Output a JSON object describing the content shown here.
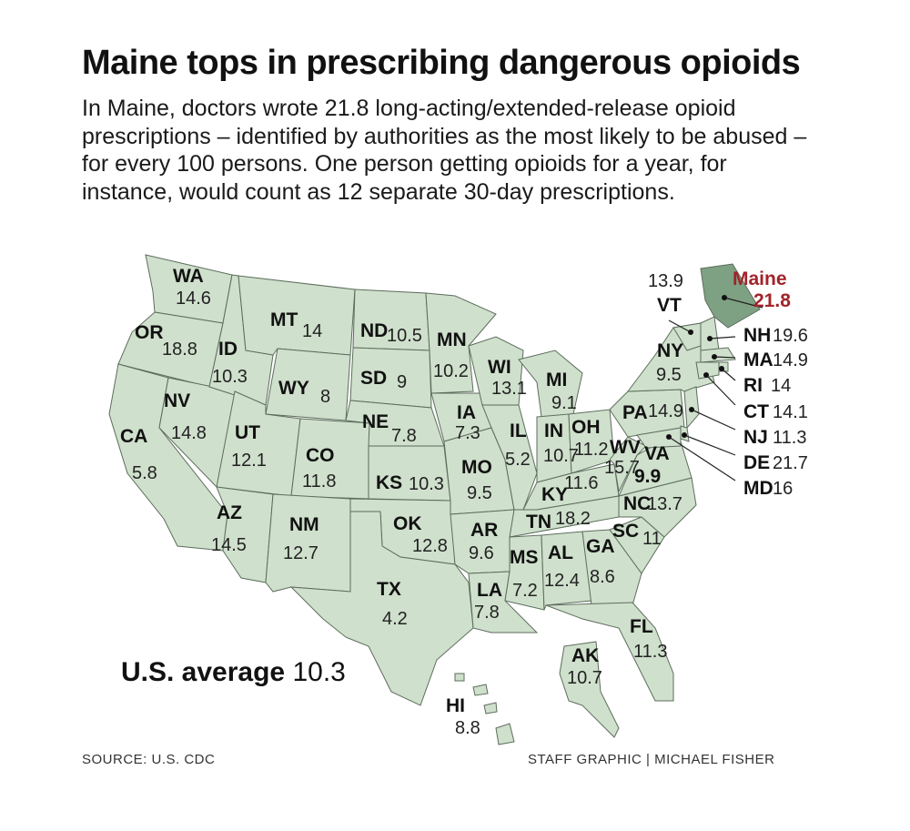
{
  "title": "Maine tops in prescribing dangerous opioids",
  "subtitle": "In Maine, doctors wrote 21.8 long-acting/extended-release opioid prescriptions – identified by authorities as the most likely to be abused – for every 100 persons. One person getting opioids for a year, for instance, would count as 12 separate 30-day prescriptions.",
  "us_average": {
    "label": "U.S. average",
    "value": "10.3"
  },
  "source": "SOURCE: U.S. CDC",
  "credit": "STAFF GRAPHIC | MICHAEL FISHER",
  "colors": {
    "state_fill": "#cfe0cc",
    "highlight_fill": "#7ea183",
    "highlight_text": "#a2232a",
    "border": "#5d6d5d"
  },
  "states": [
    {
      "abbr": "WA",
      "value": "14.6"
    },
    {
      "abbr": "OR",
      "value": "18.8"
    },
    {
      "abbr": "CA",
      "value": "5.8"
    },
    {
      "abbr": "NV",
      "value": "14.8"
    },
    {
      "abbr": "ID",
      "value": "10.3"
    },
    {
      "abbr": "MT",
      "value": "14"
    },
    {
      "abbr": "WY",
      "value": "8"
    },
    {
      "abbr": "UT",
      "value": "12.1"
    },
    {
      "abbr": "AZ",
      "value": "14.5"
    },
    {
      "abbr": "CO",
      "value": "11.8"
    },
    {
      "abbr": "NM",
      "value": "12.7"
    },
    {
      "abbr": "ND",
      "value": "10.5"
    },
    {
      "abbr": "SD",
      "value": "9"
    },
    {
      "abbr": "NE",
      "value": "7.8"
    },
    {
      "abbr": "KS",
      "value": "10.3"
    },
    {
      "abbr": "OK",
      "value": "12.8"
    },
    {
      "abbr": "TX",
      "value": "4.2"
    },
    {
      "abbr": "MN",
      "value": "10.2"
    },
    {
      "abbr": "IA",
      "value": "7.3"
    },
    {
      "abbr": "MO",
      "value": "9.5"
    },
    {
      "abbr": "AR",
      "value": "9.6"
    },
    {
      "abbr": "LA",
      "value": "7.8"
    },
    {
      "abbr": "WI",
      "value": "13.1"
    },
    {
      "abbr": "IL",
      "value": "5.2"
    },
    {
      "abbr": "MI",
      "value": "9.1"
    },
    {
      "abbr": "IN",
      "value": "10.7"
    },
    {
      "abbr": "OH",
      "value": "11.2"
    },
    {
      "abbr": "KY",
      "value": "11.6"
    },
    {
      "abbr": "TN",
      "value": "18.2"
    },
    {
      "abbr": "MS",
      "value": "7.2"
    },
    {
      "abbr": "AL",
      "value": "12.4"
    },
    {
      "abbr": "GA",
      "value": "8.6"
    },
    {
      "abbr": "FL",
      "value": "11.3"
    },
    {
      "abbr": "SC",
      "value": "11"
    },
    {
      "abbr": "NC",
      "value": "13.7"
    },
    {
      "abbr": "VA",
      "value": "9.9"
    },
    {
      "abbr": "WV",
      "value": "15.7"
    },
    {
      "abbr": "PA",
      "value": "14.9"
    },
    {
      "abbr": "NY",
      "value": "9.5"
    },
    {
      "abbr": "VT",
      "value": "13.9"
    },
    {
      "abbr": "Maine",
      "value": "21.8"
    },
    {
      "abbr": "NH",
      "value": "19.6"
    },
    {
      "abbr": "MA",
      "value": "14.9"
    },
    {
      "abbr": "RI",
      "value": "14"
    },
    {
      "abbr": "CT",
      "value": "14.1"
    },
    {
      "abbr": "NJ",
      "value": "11.3"
    },
    {
      "abbr": "DE",
      "value": "21.7"
    },
    {
      "abbr": "MD",
      "value": "16"
    },
    {
      "abbr": "AK",
      "value": "10.7"
    },
    {
      "abbr": "HI",
      "value": "8.8"
    }
  ]
}
